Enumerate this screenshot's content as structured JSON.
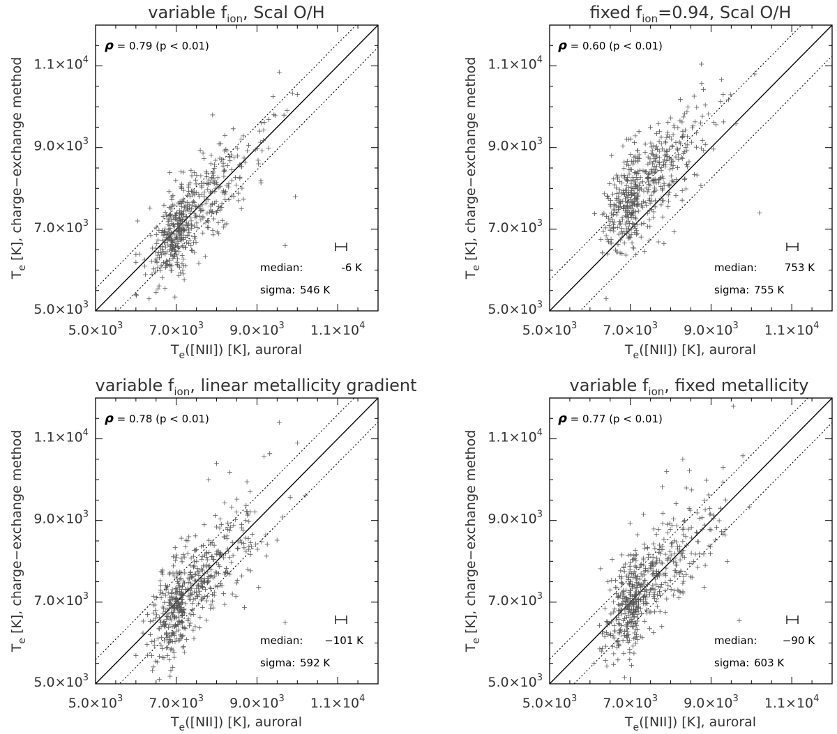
{
  "figure": {
    "panels": [
      {
        "title_main": "variable f",
        "title_sub": "ion",
        "title_rest": ", Scal O/H",
        "rho_symbol": "ρ",
        "rho_text": " = 0.79 (p < 0.01)",
        "median_label": "median:",
        "median_value": "-6 K",
        "sigma_label": "sigma:",
        "sigma_value": "546 K",
        "xlabel_main": "T",
        "xlabel_sub": "e",
        "xlabel_rest": "([NII]) [K], auroral",
        "ylabel_main": "T",
        "ylabel_sub": "e",
        "ylabel_rest": " [K], charge−exchange method"
      },
      {
        "title_main": "fixed f",
        "title_sub": "ion",
        "title_rest": "=0.94, Scal O/H",
        "rho_symbol": "ρ",
        "rho_text": " = 0.60 (p < 0.01)",
        "median_label": "median:",
        "median_value": "753 K",
        "sigma_label": "sigma:",
        "sigma_value": "755 K",
        "xlabel_main": "T",
        "xlabel_sub": "e",
        "xlabel_rest": "([NII]) [K], auroral",
        "ylabel_main": "T",
        "ylabel_sub": "e",
        "ylabel_rest": " [K], charge−exchange method"
      },
      {
        "title_main": "variable f",
        "title_sub": "ion",
        "title_rest": ", linear metallicity gradient",
        "rho_symbol": "ρ",
        "rho_text": " = 0.78 (p < 0.01)",
        "median_label": "median:",
        "median_value": "−101 K",
        "sigma_label": "sigma:",
        "sigma_value": "592 K",
        "xlabel_main": "T",
        "xlabel_sub": "e",
        "xlabel_rest": "([NII]) [K], auroral",
        "ylabel_main": "T",
        "ylabel_sub": "e",
        "ylabel_rest": " [K], charge−exchange method"
      },
      {
        "title_main": "variable f",
        "title_sub": "ion",
        "title_rest": ", fixed metallicity",
        "rho_symbol": "ρ",
        "rho_text": " = 0.77 (p < 0.01)",
        "median_label": "median:",
        "median_value": "−90 K",
        "sigma_label": "sigma:",
        "sigma_value": "603 K",
        "xlabel_main": "T",
        "xlabel_sub": "e",
        "xlabel_rest": "([NII]) [K], auroral",
        "ylabel_main": "T",
        "ylabel_sub": "e",
        "ylabel_rest": " [K], charge−exchange method"
      }
    ]
  },
  "chart_data": [
    {
      "type": "scatter",
      "title": "variable f_ion, Scal O/H",
      "xlabel": "T_e([NII]) [K], auroral",
      "ylabel": "T_e [K], charge-exchange method",
      "xlim": [
        5000,
        12000
      ],
      "ylim": [
        5000,
        12000
      ],
      "xticks": [
        5000,
        7000,
        9000,
        11000
      ],
      "yticks": [
        5000,
        7000,
        9000,
        11000
      ],
      "xtick_labels": [
        [
          "5.0×10",
          "3"
        ],
        [
          "7.0×10",
          "3"
        ],
        [
          "9.0×10",
          "3"
        ],
        [
          "1.1×10",
          "4"
        ]
      ],
      "ytick_labels": [
        [
          "5.0×10",
          "3"
        ],
        [
          "7.0×10",
          "3"
        ],
        [
          "9.0×10",
          "3"
        ],
        [
          "1.1×10",
          "4"
        ]
      ],
      "reference_lines": {
        "one_to_one": true,
        "band_offset_k": 546
      },
      "correlation": {
        "rho": 0.79,
        "p": "< 0.01"
      },
      "median_offset_k": -6,
      "sigma_k": 546,
      "n_points": 520,
      "spread_x": 900,
      "spread_y": 560,
      "x_center": 7200,
      "outliers": [
        [
          9550,
          10850
        ],
        [
          9700,
          6600
        ],
        [
          10000,
          10300
        ],
        [
          7900,
          9800
        ],
        [
          9950,
          7800
        ]
      ]
    },
    {
      "type": "scatter",
      "title": "fixed f_ion=0.94, Scal O/H",
      "xlabel": "T_e([NII]) [K], auroral",
      "ylabel": "T_e [K], charge-exchange method",
      "xlim": [
        5000,
        12000
      ],
      "ylim": [
        5000,
        12000
      ],
      "xticks": [
        5000,
        7000,
        9000,
        11000
      ],
      "yticks": [
        5000,
        7000,
        9000,
        11000
      ],
      "xtick_labels": [
        [
          "5.0×10",
          "3"
        ],
        [
          "7.0×10",
          "3"
        ],
        [
          "9.0×10",
          "3"
        ],
        [
          "1.1×10",
          "4"
        ]
      ],
      "ytick_labels": [
        [
          "5.0×10",
          "3"
        ],
        [
          "7.0×10",
          "3"
        ],
        [
          "9.0×10",
          "3"
        ],
        [
          "1.1×10",
          "4"
        ]
      ],
      "reference_lines": {
        "one_to_one": true,
        "band_offset_k": 755
      },
      "correlation": {
        "rho": 0.6,
        "p": "< 0.01"
      },
      "median_offset_k": 753,
      "sigma_k": 755,
      "n_points": 520,
      "spread_x": 900,
      "spread_y": 600,
      "x_center": 7200,
      "outliers": [
        [
          7500,
          9500
        ],
        [
          8300,
          9400
        ],
        [
          9300,
          10300
        ],
        [
          10200,
          7400
        ],
        [
          6400,
          5300
        ]
      ]
    },
    {
      "type": "scatter",
      "title": "variable f_ion, linear metallicity gradient",
      "xlabel": "T_e([NII]) [K], auroral",
      "ylabel": "T_e [K], charge-exchange method",
      "xlim": [
        5000,
        12000
      ],
      "ylim": [
        5000,
        12000
      ],
      "xticks": [
        5000,
        7000,
        9000,
        11000
      ],
      "yticks": [
        5000,
        7000,
        9000,
        11000
      ],
      "xtick_labels": [
        [
          "5.0×10",
          "3"
        ],
        [
          "7.0×10",
          "3"
        ],
        [
          "9.0×10",
          "3"
        ],
        [
          "1.1×10",
          "4"
        ]
      ],
      "ytick_labels": [
        [
          "5.0×10",
          "3"
        ],
        [
          "7.0×10",
          "3"
        ],
        [
          "9.0×10",
          "3"
        ],
        [
          "1.1×10",
          "4"
        ]
      ],
      "reference_lines": {
        "one_to_one": true,
        "band_offset_k": 592
      },
      "correlation": {
        "rho": 0.78,
        "p": "< 0.01"
      },
      "median_offset_k": -101,
      "sigma_k": 592,
      "n_points": 540,
      "spread_x": 920,
      "spread_y": 600,
      "x_center": 7200,
      "outliers": [
        [
          9550,
          11400
        ],
        [
          9700,
          6500
        ],
        [
          8000,
          10400
        ],
        [
          10000,
          10900
        ],
        [
          7800,
          10000
        ]
      ]
    },
    {
      "type": "scatter",
      "title": "variable f_ion, fixed metallicity",
      "xlabel": "T_e([NII]) [K], auroral",
      "ylabel": "T_e [K], charge-exchange method",
      "xlim": [
        5000,
        12000
      ],
      "ylim": [
        5000,
        12000
      ],
      "xticks": [
        5000,
        7000,
        9000,
        11000
      ],
      "yticks": [
        5000,
        7000,
        9000,
        11000
      ],
      "xtick_labels": [
        [
          "5.0×10",
          "3"
        ],
        [
          "7.0×10",
          "3"
        ],
        [
          "9.0×10",
          "3"
        ],
        [
          "1.1×10",
          "4"
        ]
      ],
      "ytick_labels": [
        [
          "5.0×10",
          "3"
        ],
        [
          "7.0×10",
          "3"
        ],
        [
          "9.0×10",
          "3"
        ],
        [
          "1.1×10",
          "4"
        ]
      ],
      "reference_lines": {
        "one_to_one": true,
        "band_offset_k": 603
      },
      "correlation": {
        "rho": 0.77,
        "p": "< 0.01"
      },
      "median_offset_k": -90,
      "sigma_k": 603,
      "n_points": 540,
      "spread_x": 920,
      "spread_y": 620,
      "x_center": 7200,
      "outliers": [
        [
          9550,
          11800
        ],
        [
          9700,
          6550
        ],
        [
          8300,
          10500
        ],
        [
          9300,
          10300
        ],
        [
          7900,
          10200
        ]
      ]
    }
  ]
}
